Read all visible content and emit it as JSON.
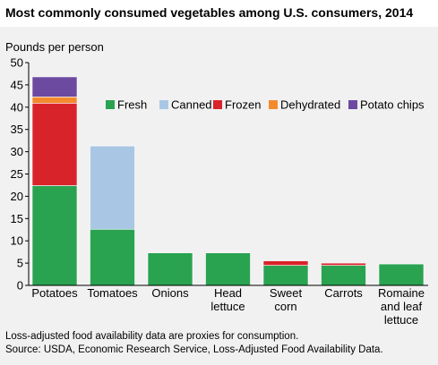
{
  "chart_data": {
    "type": "bar",
    "stacked": true,
    "title": "Most commonly consumed vegetables among U.S. consumers, 2014",
    "ylabel": "Pounds per person",
    "xlabel": "",
    "ylim": [
      0,
      50
    ],
    "yticks": [
      "0",
      "5",
      "10",
      "15",
      "20",
      "25",
      "30",
      "35",
      "40",
      "45",
      "50"
    ],
    "categories": [
      [
        "Potatoes"
      ],
      [
        "Tomatoes"
      ],
      [
        "Onions"
      ],
      [
        "Head",
        "lettuce"
      ],
      [
        "Sweet",
        "corn"
      ],
      [
        "Carrots"
      ],
      [
        "Romaine",
        "and leaf",
        "lettuce"
      ]
    ],
    "series": [
      {
        "name": "Fresh",
        "color": "#2aa351",
        "values": [
          22.4,
          12.6,
          7.3,
          7.3,
          4.5,
          4.5,
          4.8
        ]
      },
      {
        "name": "Canned",
        "color": "#a9c7e4",
        "values": [
          0,
          18.7,
          0,
          0,
          0,
          0,
          0
        ]
      },
      {
        "name": "Frozen",
        "color": "#d9232a",
        "values": [
          18.5,
          0,
          0,
          0,
          1.0,
          0.5,
          0
        ]
      },
      {
        "name": "Dehydrated",
        "color": "#f28a2d",
        "values": [
          1.4,
          0,
          0,
          0,
          0,
          0,
          0
        ]
      },
      {
        "name": "Potato chips",
        "color": "#6b4aa0",
        "values": [
          4.5,
          0,
          0,
          0,
          0,
          0,
          0
        ]
      }
    ],
    "legend_position": "top-right",
    "grid": false
  },
  "footnotes": [
    "Loss-adjusted food availability data are proxies for consumption.",
    "Source: USDA, Economic Research Service, Loss-Adjusted Food Availability Data."
  ]
}
